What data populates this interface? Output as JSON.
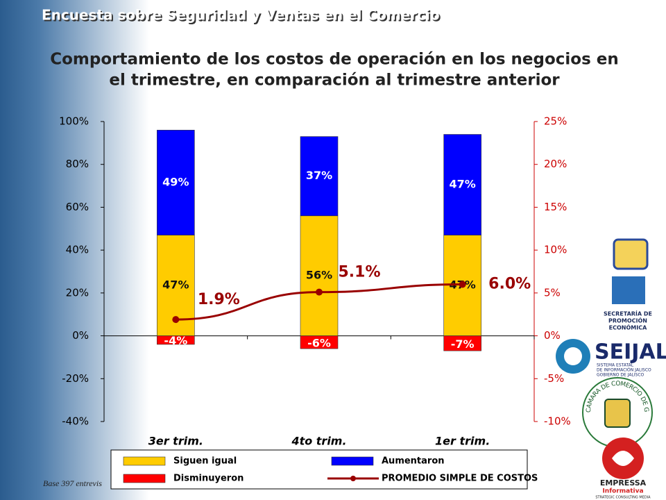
{
  "header": "Encuesta sobre Seguridad y Ventas en el Comercio",
  "footnote": "Base 397 entrevis",
  "logos": {
    "sepro": [
      "SECRETARÍA DE",
      "PROMOCIÓN",
      "ECONÓMICA"
    ],
    "seijal": {
      "name": "SEIJAL",
      "line1": "SISTEMA ESTATAL",
      "line2": "DE INFORMACIÓN JALISCO",
      "line3": "GOBIERNO DE JALISCO"
    },
    "camara": "CAMARA DE COMERCIO DE GUADALAJARA",
    "empressa": {
      "name": "EMPRESSA",
      "sub": "Informativa",
      "tag": "STRATEGIC CONSULTING MEDIA"
    }
  },
  "chart_data": {
    "type": "bar",
    "title": [
      "Comportamiento de los costos de operación en los negocios en",
      "el trimestre, en comparación al trimestre anterior"
    ],
    "categories": [
      "3er trim.",
      "4to trim.",
      "1er trim."
    ],
    "series": [
      {
        "name": "Siguen igual",
        "color": "#ffcc00",
        "values": [
          47,
          56,
          47
        ],
        "value_labels": [
          "47%",
          "56%",
          "47%"
        ]
      },
      {
        "name": "Aumentaron",
        "color": "#0000ff",
        "values": [
          49,
          37,
          47
        ],
        "value_labels": [
          "49%",
          "37%",
          "47%"
        ]
      },
      {
        "name": "Disminuyeron",
        "color": "#ff0000",
        "values": [
          -4,
          -6,
          -7
        ],
        "value_labels": [
          "-4%",
          "-6%",
          "-7%"
        ]
      },
      {
        "name": "PROMEDIO SIMPLE DE COSTOS",
        "type": "line",
        "axis": "y2",
        "color": "#990000",
        "values": [
          1.9,
          5.1,
          6.0
        ],
        "value_labels": [
          "1.9%",
          "5.1%",
          "6.0%"
        ]
      }
    ],
    "ylim": [
      -40,
      100
    ],
    "yticks": [
      {
        "value": -40,
        "label": "-40%"
      },
      {
        "value": -20,
        "label": "-20%"
      },
      {
        "value": 0,
        "label": "0%"
      },
      {
        "value": 20,
        "label": "20%"
      },
      {
        "value": 40,
        "label": "40%"
      },
      {
        "value": 60,
        "label": "60%"
      },
      {
        "value": 80,
        "label": "80%"
      },
      {
        "value": 100,
        "label": "100%"
      }
    ],
    "y2lim": [
      -10,
      25
    ],
    "y2ticks": [
      {
        "value": -10,
        "label": "-10%"
      },
      {
        "value": -5,
        "label": "-5%"
      },
      {
        "value": 0,
        "label": "0%"
      },
      {
        "value": 5,
        "label": "5%"
      },
      {
        "value": 10,
        "label": "10%"
      },
      {
        "value": 15,
        "label": "15%"
      },
      {
        "value": 20,
        "label": "20%"
      },
      {
        "value": 25,
        "label": "25%"
      }
    ],
    "y2_color": "#cc0000",
    "grid": false,
    "legend": "bottom"
  }
}
